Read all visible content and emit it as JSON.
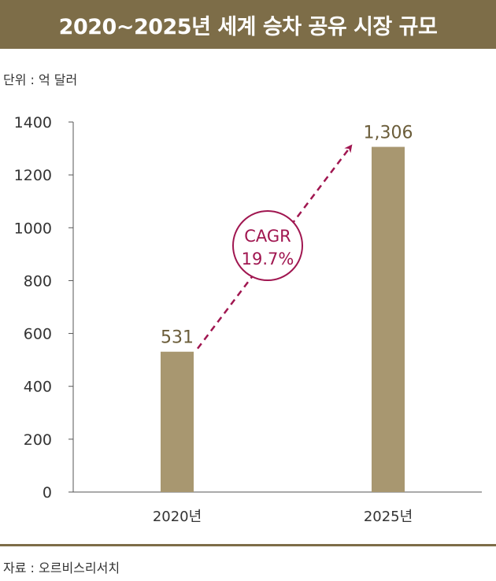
{
  "title": "2020~2025년 세계 승차 공유 시장 규모",
  "unit": "단위 : 억 달러",
  "source": "자료 : 오르비스리서치",
  "colors": {
    "header": "#7d6d48",
    "bar": "#a89770",
    "data_label": "#6b5d3a",
    "cagr": "#a01650"
  },
  "chart_data": {
    "type": "bar",
    "categories": [
      "2020년",
      "2025년"
    ],
    "values": [
      531,
      1306
    ],
    "data_labels": [
      "531",
      "1,306"
    ],
    "ylim": [
      0,
      1400
    ],
    "yticks": [
      0,
      200,
      400,
      600,
      800,
      1000,
      1200,
      1400
    ],
    "ytick_labels": [
      "0",
      "200",
      "400",
      "600",
      "800",
      "1000",
      "1200",
      "1400"
    ],
    "grid": false,
    "annotation": {
      "line1": "CAGR",
      "line2": "19.7%"
    }
  }
}
